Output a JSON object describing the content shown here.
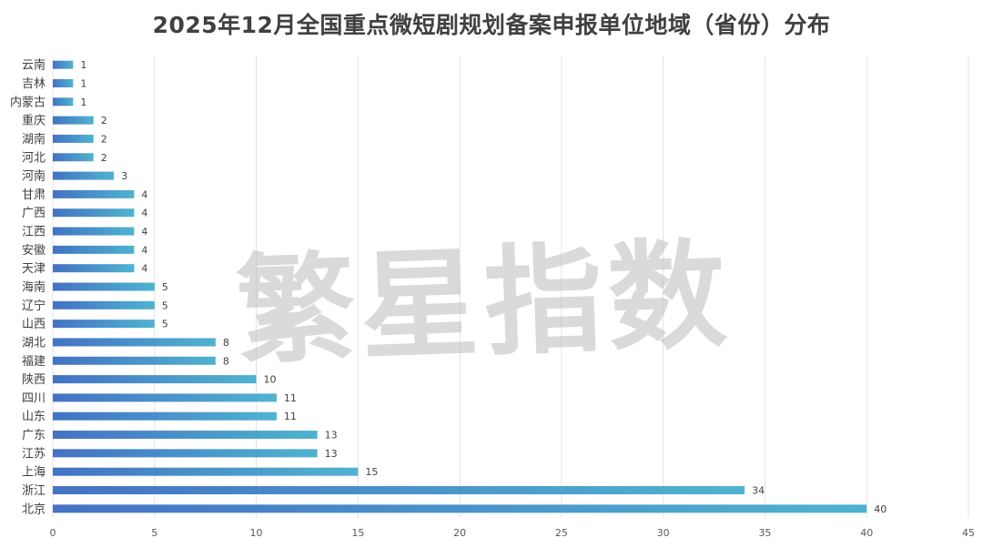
{
  "chart_data": {
    "type": "bar",
    "orientation": "horizontal",
    "title": "2025年12月全国重点微短剧规划备案申报单位地域（省份）分布",
    "categories": [
      "云南",
      "吉林",
      "内蒙古",
      "重庆",
      "湖南",
      "河北",
      "河南",
      "甘肃",
      "广西",
      "江西",
      "安徽",
      "天津",
      "海南",
      "辽宁",
      "山西",
      "湖北",
      "福建",
      "陕西",
      "四川",
      "山东",
      "广东",
      "江苏",
      "上海",
      "浙江",
      "北京"
    ],
    "values": [
      1,
      1,
      1,
      2,
      2,
      2,
      3,
      4,
      4,
      4,
      4,
      4,
      5,
      5,
      5,
      8,
      8,
      10,
      11,
      11,
      13,
      13,
      15,
      34,
      40
    ],
    "xlim": [
      0,
      45
    ],
    "xticks": [
      0,
      5,
      10,
      15,
      20,
      25,
      30,
      35,
      40,
      45
    ],
    "grid": "vertical",
    "data_labels": true,
    "bar_gradient": [
      "#4472C4",
      "#4FB3CF"
    ],
    "legend": "none"
  },
  "watermark": {
    "text": "繁星指数",
    "color": "#bdbdbd"
  }
}
